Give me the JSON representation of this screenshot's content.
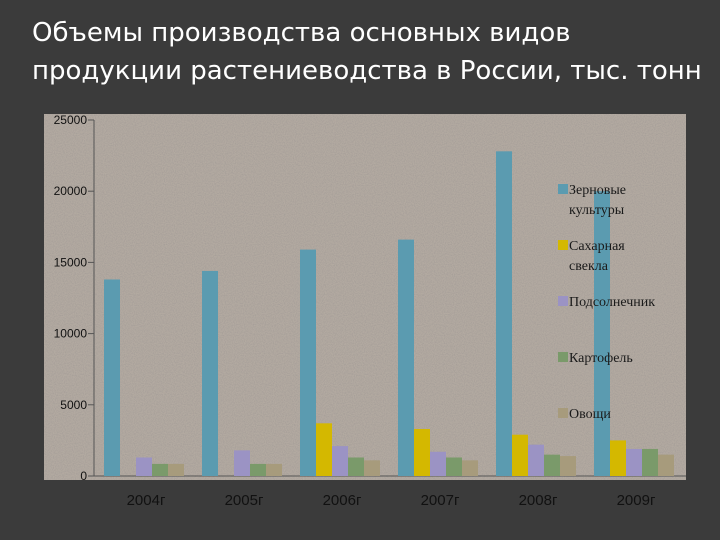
{
  "title_lines": [
    "Объемы производства основных видов",
    "продукции растениеводства в России, тыс. тонн"
  ],
  "chart_data": {
    "type": "bar",
    "title": "Объемы производства основных видов продукции растениеводства в России, тыс. тонн",
    "categories": [
      "2004г",
      "2005г",
      "2006г",
      "2007г",
      "2008г",
      "2009г"
    ],
    "ylim": [
      0,
      25000
    ],
    "yticks": [
      0,
      5000,
      10000,
      15000,
      20000,
      25000
    ],
    "grid": false,
    "legend_position": "right",
    "series": [
      {
        "name": "Зерновые культуры",
        "color": "#5b9bb0",
        "values": [
          13800,
          14400,
          15900,
          16600,
          22800,
          20000
        ]
      },
      {
        "name": "Сахарная свекла",
        "color": "#d4b800",
        "values": [
          0,
          0,
          3700,
          3300,
          2900,
          2500
        ]
      },
      {
        "name": "Подсолнечник",
        "color": "#9b93c4",
        "values": [
          1300,
          1800,
          2100,
          1700,
          2200,
          1900
        ]
      },
      {
        "name": "Картофель",
        "color": "#7a9a6a",
        "values": [
          850,
          850,
          1300,
          1300,
          1500,
          1900
        ]
      },
      {
        "name": "Овощи",
        "color": "#a79b7c",
        "values": [
          850,
          850,
          1100,
          1100,
          1400,
          1500
        ]
      }
    ]
  }
}
